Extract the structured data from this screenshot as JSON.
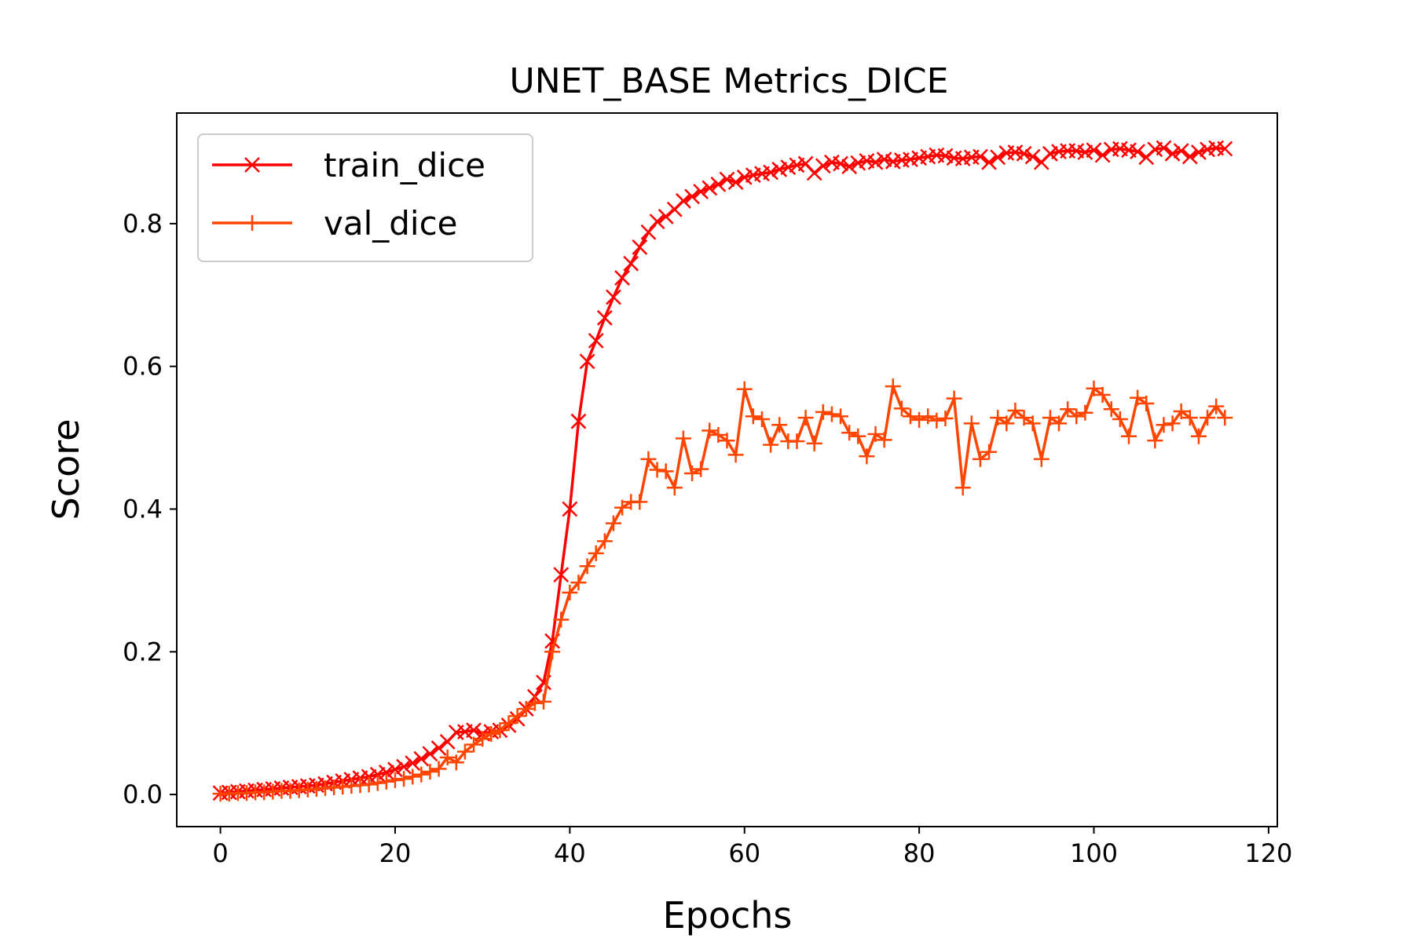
{
  "chart_data": {
    "type": "line",
    "title": "UNET_BASE Metrics_DICE",
    "xlabel": "Epochs",
    "ylabel": "Score",
    "xlim": [
      -5,
      121
    ],
    "ylim": [
      -0.045,
      0.955
    ],
    "xticks": [
      0,
      20,
      40,
      60,
      80,
      100,
      120
    ],
    "yticks": [
      0.0,
      0.2,
      0.4,
      0.6,
      0.8
    ],
    "xtick_labels": [
      "0",
      "20",
      "40",
      "60",
      "80",
      "100",
      "120"
    ],
    "ytick_labels": [
      "0.0",
      "0.2",
      "0.4",
      "0.6",
      "0.8"
    ],
    "grid": false,
    "legend": "upper-left",
    "series": [
      {
        "name": "train_dice",
        "color": "#ff0000",
        "marker": "x",
        "values": [
          0.002,
          0.003,
          0.004,
          0.005,
          0.006,
          0.007,
          0.008,
          0.009,
          0.01,
          0.011,
          0.012,
          0.013,
          0.015,
          0.017,
          0.019,
          0.021,
          0.023,
          0.025,
          0.028,
          0.031,
          0.035,
          0.039,
          0.044,
          0.05,
          0.057,
          0.065,
          0.074,
          0.087,
          0.088,
          0.09,
          0.085,
          0.088,
          0.09,
          0.097,
          0.106,
          0.12,
          0.137,
          0.157,
          0.215,
          0.308,
          0.4,
          0.523,
          0.607,
          0.636,
          0.668,
          0.697,
          0.724,
          0.744,
          0.767,
          0.788,
          0.803,
          0.81,
          0.82,
          0.832,
          0.838,
          0.845,
          0.85,
          0.855,
          0.862,
          0.858,
          0.865,
          0.868,
          0.87,
          0.872,
          0.876,
          0.879,
          0.882,
          0.884,
          0.871,
          0.881,
          0.886,
          0.884,
          0.88,
          0.885,
          0.888,
          0.886,
          0.89,
          0.887,
          0.889,
          0.89,
          0.892,
          0.894,
          0.896,
          0.895,
          0.892,
          0.891,
          0.893,
          0.894,
          0.886,
          0.893,
          0.899,
          0.9,
          0.898,
          0.894,
          0.886,
          0.898,
          0.901,
          0.902,
          0.902,
          0.9,
          0.903,
          0.896,
          0.904,
          0.905,
          0.903,
          0.901,
          0.893,
          0.904,
          0.906,
          0.898,
          0.902,
          0.894,
          0.9,
          0.904,
          0.906,
          0.905
        ]
      },
      {
        "name": "val_dice",
        "color": "#ff4500",
        "marker": "+",
        "values": [
          0.001,
          0.001,
          0.002,
          0.002,
          0.003,
          0.003,
          0.004,
          0.005,
          0.005,
          0.006,
          0.007,
          0.008,
          0.009,
          0.01,
          0.011,
          0.012,
          0.013,
          0.014,
          0.016,
          0.018,
          0.02,
          0.022,
          0.025,
          0.028,
          0.032,
          0.036,
          0.052,
          0.045,
          0.06,
          0.07,
          0.078,
          0.085,
          0.09,
          0.1,
          0.11,
          0.12,
          0.128,
          0.13,
          0.2,
          0.245,
          0.283,
          0.297,
          0.32,
          0.338,
          0.355,
          0.38,
          0.402,
          0.41,
          0.41,
          0.47,
          0.455,
          0.453,
          0.43,
          0.499,
          0.45,
          0.456,
          0.51,
          0.504,
          0.496,
          0.476,
          0.568,
          0.53,
          0.526,
          0.49,
          0.518,
          0.495,
          0.495,
          0.528,
          0.492,
          0.536,
          0.533,
          0.53,
          0.507,
          0.502,
          0.474,
          0.505,
          0.497,
          0.572,
          0.541,
          0.53,
          0.525,
          0.53,
          0.524,
          0.527,
          0.555,
          0.43,
          0.52,
          0.47,
          0.48,
          0.528,
          0.52,
          0.538,
          0.528,
          0.52,
          0.47,
          0.528,
          0.52,
          0.54,
          0.53,
          0.535,
          0.569,
          0.56,
          0.54,
          0.526,
          0.502,
          0.556,
          0.548,
          0.496,
          0.518,
          0.52,
          0.537,
          0.528,
          0.502,
          0.528,
          0.544,
          0.528
        ]
      }
    ]
  }
}
